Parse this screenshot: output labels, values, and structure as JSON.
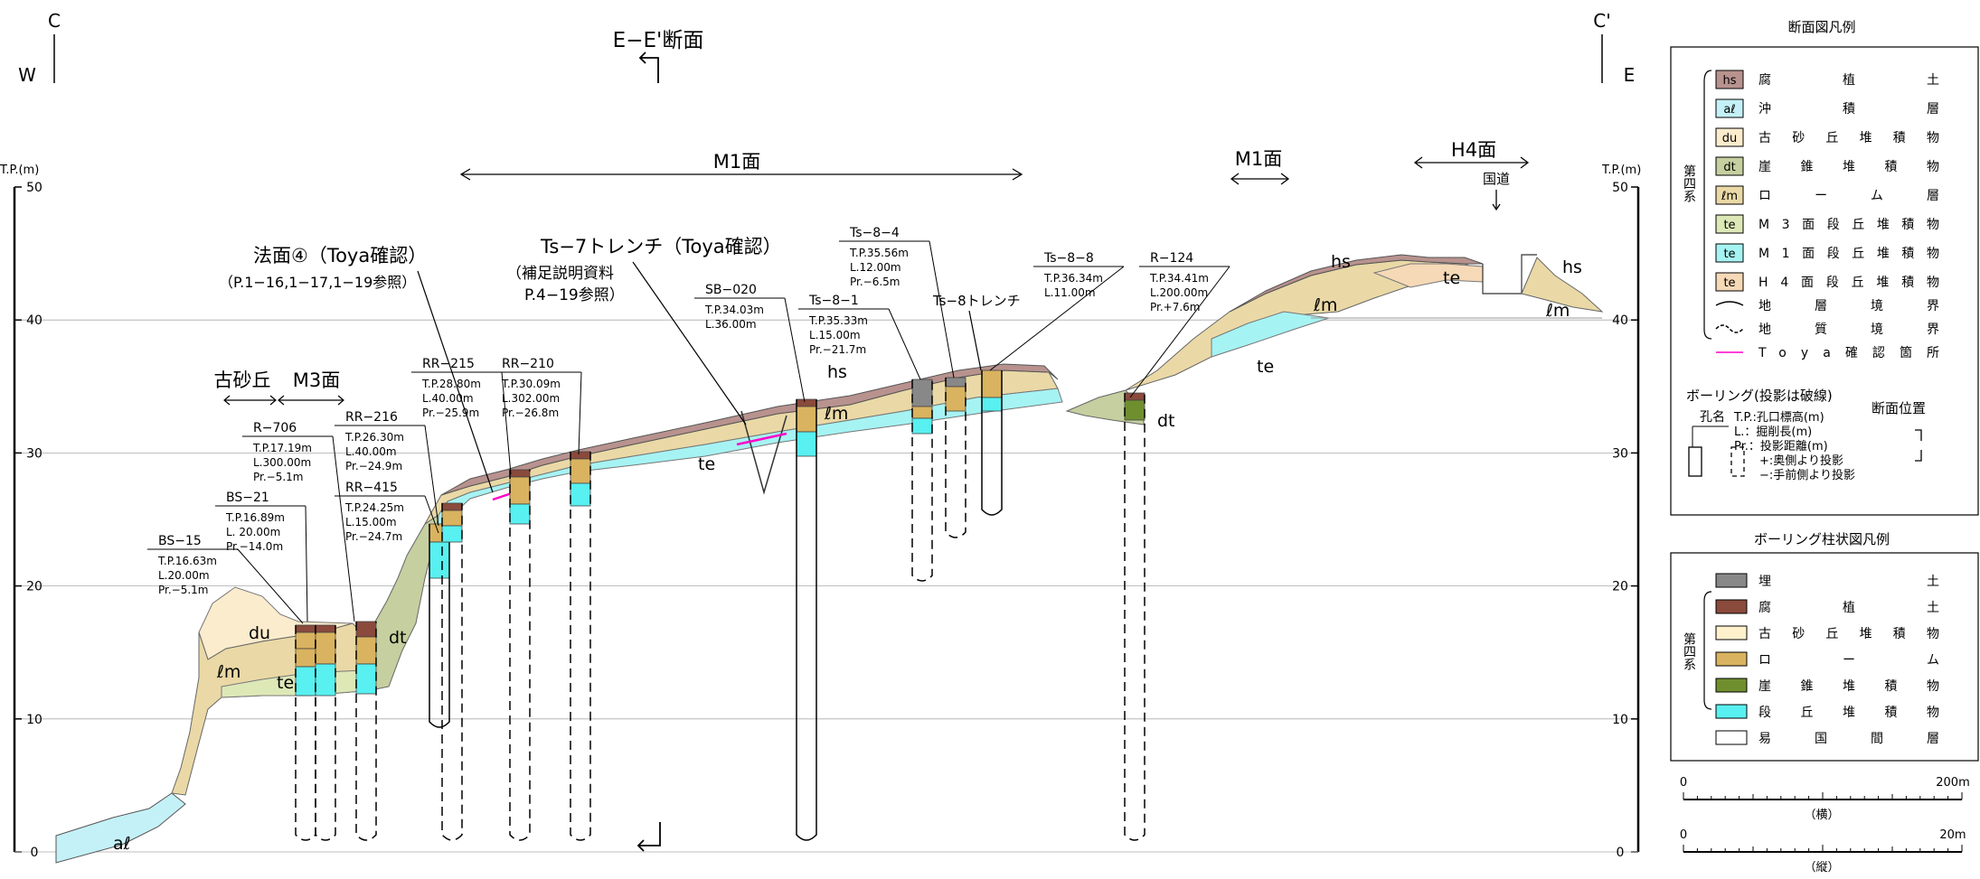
{
  "section": {
    "title": "E−E'断面",
    "left_end": "C",
    "right_end": "C'",
    "left_dir": "W",
    "right_dir": "E"
  },
  "axis": {
    "label": "T.P.(m)",
    "ticks": [
      "50",
      "40",
      "30",
      "20",
      "10",
      "0"
    ]
  },
  "surfaces": {
    "m1": "M1面",
    "m1_right": "M1面",
    "h4": "H4面",
    "m3": "M3面",
    "kosakyu": "古砂丘",
    "road": "国道"
  },
  "callouts": {
    "houmen_title": "法面④（Toya確認）",
    "houmen_ref": "（P.1−16,1−17,1−19参照）",
    "trench_title": "Ts−7トレンチ（Toya確認）",
    "trench_ref1": "（補足説明資料",
    "trench_ref2": "P.4−19参照）",
    "ts8_trench": "Ts−8トレンチ"
  },
  "boreholes": [
    {
      "name": "BS−15",
      "tp": "T.P.16.63m",
      "len": "L.20.00m",
      "pr": "Pr.−5.1m"
    },
    {
      "name": "BS−21",
      "tp": "T.P.16.89m",
      "len": "L. 20.00m",
      "pr": "Pr.−14.0m"
    },
    {
      "name": "R−706",
      "tp": "T.P.17.19m",
      "len": "L.300.00m",
      "pr": "Pr.−5.1m"
    },
    {
      "name": "RR−216",
      "tp": "T.P.26.30m",
      "len": "L.40.00m",
      "pr": "Pr.−24.9m"
    },
    {
      "name": "RR−415",
      "tp": "T.P.24.25m",
      "len": "L.15.00m",
      "pr": "Pr.−24.7m"
    },
    {
      "name": "RR−215",
      "tp": "T.P.28.80m",
      "len": "L.40.00m",
      "pr": "Pr.−25.9m"
    },
    {
      "name": "RR−210",
      "tp": "T.P.30.09m",
      "len": "L.302.00m",
      "pr": "Pr.−26.8m"
    },
    {
      "name": "SB−020",
      "tp": "T.P.34.03m",
      "len": "L.36.00m",
      "pr": ""
    },
    {
      "name": "Ts−8−1",
      "tp": "T.P.35.33m",
      "len": "L.15.00m",
      "pr": "Pr.−21.7m"
    },
    {
      "name": "Ts−8−4",
      "tp": "T.P.35.56m",
      "len": "L.12.00m",
      "pr": "Pr.−6.5m"
    },
    {
      "name": "Ts−8−8",
      "tp": "T.P.36.34m",
      "len": "L.11.00m",
      "pr": ""
    },
    {
      "name": "R−124",
      "tp": "T.P.34.41m",
      "len": "L.200.00m",
      "pr": "Pr.+7.6m"
    }
  ],
  "units": {
    "hs": "hs",
    "al": "aℓ",
    "du": "du",
    "dt": "dt",
    "lm": "ℓm",
    "te": "te"
  },
  "colors": {
    "hs": "#b8928e",
    "al": "#c4f1f7",
    "du": "#fbeccd",
    "dt": "#c5cf9f",
    "lm": "#ead9a6",
    "te_m3": "#dde8b7",
    "te_m1": "#a6f3f3",
    "te_h4": "#f6d9b7",
    "toya": "#ff00c8",
    "col_fill": "#888888",
    "col_humus": "#8a4a3c",
    "col_dune": "#fff1cc",
    "col_loam": "#d9b35f",
    "col_talus": "#6f8f2f",
    "col_terrace": "#58f0f0"
  },
  "legend": {
    "title": "断面図凡例",
    "system": "第四系",
    "items": [
      {
        "code": "hs",
        "text": "腐　植　土"
      },
      {
        "code": "aℓ",
        "text": "沖　積　層"
      },
      {
        "code": "du",
        "text": "古砂丘堆積物"
      },
      {
        "code": "dt",
        "text": "崖錐堆積物"
      },
      {
        "code": "ℓm",
        "text": "ローム層"
      },
      {
        "code": "te",
        "text": "M3面段丘堆積物"
      },
      {
        "code": "te",
        "text": "M1面段丘堆積物"
      },
      {
        "code": "te",
        "text": "H4面段丘堆積物"
      }
    ],
    "lines": [
      "地層境界",
      "地質境界",
      "Toya確認箇所"
    ],
    "boring_title": "ボーリング(投影は破線)",
    "hole_name": "孔名",
    "notes": [
      "T.P.:孔口標高(m)",
      "L.：掘削長(m)",
      "Pr.：投影距離(m)",
      "+:奥側より投影",
      "−:手前側より投影"
    ],
    "position_title": "断面位置"
  },
  "column_legend": {
    "title": "ボーリング柱状図凡例",
    "system": "第四系",
    "items": [
      "埋　　　　土",
      "腐　植　土",
      "古砂丘堆積物",
      "ロ　ー　ム",
      "崖錐堆積物",
      "段丘堆積物",
      "易国間層"
    ]
  },
  "scales": {
    "h_max": "200m",
    "h_zero": "0",
    "h_label": "（横）",
    "v_max": "20m",
    "v_zero": "0",
    "v_label": "（縦）"
  }
}
